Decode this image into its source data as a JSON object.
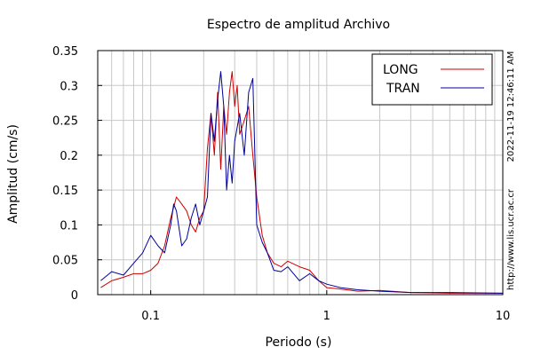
{
  "chart_data": {
    "type": "line",
    "title": "Espectro de amplitud Archivo",
    "xlabel": "Periodo (s)",
    "ylabel": "Amplitud (cm/s)",
    "x_scale": "log",
    "xlim": [
      0.05,
      10
    ],
    "ylim": [
      0,
      0.35
    ],
    "x_ticks": [
      {
        "value": 0.1,
        "label": "0.1"
      },
      {
        "value": 1,
        "label": "1"
      },
      {
        "value": 10,
        "label": "10"
      }
    ],
    "y_ticks": [
      {
        "value": 0,
        "label": "0"
      },
      {
        "value": 0.05,
        "label": "0.05"
      },
      {
        "value": 0.1,
        "label": "0.1"
      },
      {
        "value": 0.15,
        "label": "0.15"
      },
      {
        "value": 0.2,
        "label": "0.2"
      },
      {
        "value": 0.25,
        "label": "0.25"
      },
      {
        "value": 0.3,
        "label": "0.3"
      },
      {
        "value": 0.35,
        "label": "0.35"
      }
    ],
    "grid": true,
    "legend_position": "top-right",
    "series": [
      {
        "name": "LONG",
        "color": "#cc0000",
        "x": [
          0.052,
          0.06,
          0.07,
          0.08,
          0.09,
          0.1,
          0.11,
          0.12,
          0.13,
          0.14,
          0.15,
          0.16,
          0.17,
          0.18,
          0.19,
          0.2,
          0.21,
          0.22,
          0.23,
          0.24,
          0.25,
          0.26,
          0.27,
          0.28,
          0.29,
          0.3,
          0.31,
          0.32,
          0.34,
          0.36,
          0.38,
          0.4,
          0.43,
          0.46,
          0.5,
          0.55,
          0.6,
          0.7,
          0.8,
          0.9,
          1.0,
          1.2,
          1.5,
          2.0,
          3.0,
          5.0,
          10.0
        ],
        "y": [
          0.01,
          0.02,
          0.025,
          0.03,
          0.03,
          0.035,
          0.045,
          0.07,
          0.11,
          0.14,
          0.13,
          0.12,
          0.1,
          0.09,
          0.11,
          0.12,
          0.21,
          0.26,
          0.2,
          0.29,
          0.18,
          0.27,
          0.23,
          0.29,
          0.32,
          0.27,
          0.3,
          0.23,
          0.25,
          0.27,
          0.2,
          0.14,
          0.085,
          0.06,
          0.045,
          0.04,
          0.048,
          0.04,
          0.035,
          0.02,
          0.01,
          0.008,
          0.005,
          0.006,
          0.003,
          0.002,
          0.002
        ]
      },
      {
        "name": "TRAN",
        "color": "#000099",
        "x": [
          0.052,
          0.06,
          0.07,
          0.08,
          0.09,
          0.1,
          0.11,
          0.12,
          0.13,
          0.135,
          0.14,
          0.15,
          0.16,
          0.17,
          0.18,
          0.19,
          0.2,
          0.21,
          0.22,
          0.23,
          0.24,
          0.25,
          0.26,
          0.27,
          0.28,
          0.29,
          0.3,
          0.32,
          0.34,
          0.36,
          0.38,
          0.4,
          0.43,
          0.46,
          0.5,
          0.55,
          0.6,
          0.7,
          0.8,
          0.9,
          1.0,
          1.2,
          1.5,
          2.0,
          3.0,
          5.0,
          10.0
        ],
        "y": [
          0.02,
          0.033,
          0.028,
          0.045,
          0.06,
          0.085,
          0.07,
          0.06,
          0.1,
          0.13,
          0.12,
          0.07,
          0.08,
          0.11,
          0.13,
          0.1,
          0.12,
          0.14,
          0.26,
          0.22,
          0.28,
          0.32,
          0.27,
          0.15,
          0.2,
          0.16,
          0.22,
          0.26,
          0.2,
          0.29,
          0.31,
          0.1,
          0.075,
          0.06,
          0.035,
          0.033,
          0.04,
          0.02,
          0.03,
          0.02,
          0.015,
          0.01,
          0.007,
          0.005,
          0.003,
          0.003,
          0.002
        ]
      }
    ],
    "annotations": [
      "2022-11-19 12:46:11 AM",
      "http://www.lis.ucr.ac.cr"
    ]
  }
}
